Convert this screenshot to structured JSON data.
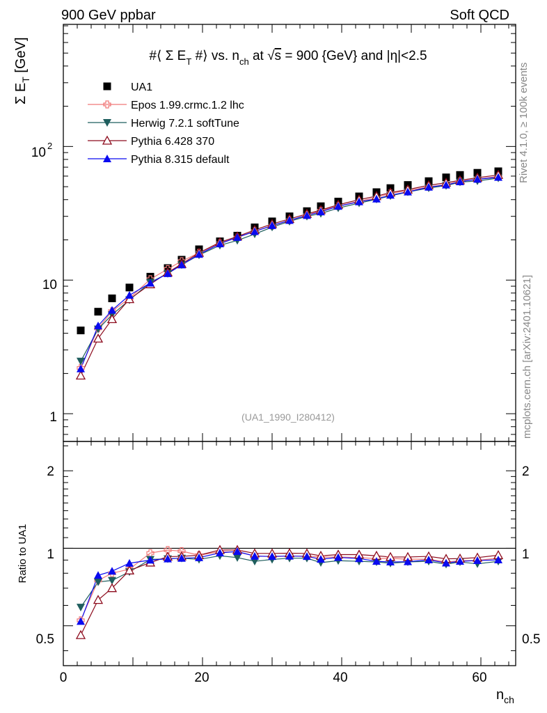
{
  "header": {
    "left_label": "900 GeV ppbar",
    "right_label": "Soft QCD"
  },
  "side": {
    "rivet_label": "Rivet 4.1.0, ≥ 100k events",
    "mcplots_label": "mcplots.cern.ch [arXiv:2401.10621]"
  },
  "chart_data": [
    {
      "type": "line",
      "title": "#⟨ Σ E_T #⟩ vs. n_ch at √s = 900 {GeV} and |η|<2.5",
      "title_parts": {
        "a": "#⟨ Σ E",
        "sub1": "T",
        "b": " #⟩ vs. n",
        "sub2": "ch",
        "c": " at √",
        "s": "s",
        "d": " = 900 {GeV} and |η|<2.5"
      },
      "ylabel_parts": {
        "main": "Σ E",
        "sub": "T",
        "unit": " [GeV]"
      },
      "yscale": "log",
      "ylim": [
        0.62,
        820
      ],
      "xlim": [
        0,
        65
      ],
      "ytick_labels": {
        "t1": "1",
        "t10": "10",
        "t100_base": "10",
        "t100_exp": "2"
      },
      "analysis_id": "(UA1_1990_I280412)",
      "x": [
        2.5,
        5,
        7,
        9.5,
        12.5,
        15,
        17,
        19.5,
        22.5,
        25,
        27.5,
        30,
        32.5,
        35,
        37,
        39.5,
        42.5,
        45,
        47,
        49.5,
        52.5,
        55,
        57,
        59.5,
        62.5
      ],
      "series": [
        {
          "name": "UA1",
          "color": "#000000",
          "marker": "square",
          "values": [
            4.2,
            5.8,
            7.3,
            8.8,
            10.6,
            12.3,
            14.2,
            17.0,
            19.5,
            21.5,
            24.8,
            27.5,
            30.0,
            32.8,
            35.7,
            38.7,
            42.3,
            45.5,
            48.8,
            51.5,
            55.0,
            58.7,
            61.2,
            63.5,
            65.2
          ]
        },
        {
          "name": "Epos 1.99.crmc.1.2 lhc",
          "color": "#f07878",
          "marker": "cross",
          "values": [
            2.2,
            4.35,
            5.85,
            7.3,
            10.15,
            12.1,
            13.85,
            16.0,
            18.9,
            20.8,
            23.2,
            25.5,
            28.0,
            30.6,
            33.0,
            35.8,
            38.9,
            41.5,
            44.6,
            46.7,
            49.9,
            51.9,
            54.8,
            57.0,
            59.7
          ]
        },
        {
          "name": "Herwig 7.2.1 softTune",
          "color": "#1f5e5e",
          "marker": "tri-down",
          "values": [
            2.47,
            4.3,
            5.5,
            7.1,
            9.6,
            11.2,
            13.0,
            15.4,
            18.2,
            19.8,
            22.1,
            24.9,
            27.5,
            30.0,
            31.5,
            34.6,
            37.7,
            40.3,
            42.7,
            45.6,
            48.9,
            50.9,
            54.1,
            55.2,
            58.0
          ]
        },
        {
          "name": "Pythia 6.428 370",
          "color": "#8c0a1c",
          "marker": "tri-up-open",
          "values": [
            1.93,
            3.65,
            5.1,
            7.2,
            9.3,
            11.4,
            13.2,
            16.0,
            19.2,
            21.2,
            23.7,
            26.3,
            28.7,
            31.3,
            33.4,
            36.6,
            40.0,
            42.5,
            45.2,
            47.6,
            51.2,
            53.5,
            55.8,
            58.4,
            61.2
          ]
        },
        {
          "name": "Pythia 8.315 default",
          "color": "#0a0af0",
          "marker": "tri-up",
          "values": [
            2.17,
            4.55,
            5.95,
            7.7,
            9.5,
            11.2,
            13.0,
            15.6,
            18.7,
            20.9,
            23.1,
            25.6,
            28.0,
            30.5,
            32.4,
            35.7,
            38.6,
            40.5,
            43.2,
            45.7,
            49.6,
            51.5,
            54.5,
            56.9,
            58.8
          ]
        }
      ],
      "legend_location": "top-left"
    },
    {
      "type": "line",
      "ylabel": "Ratio to UA1",
      "xlabel_parts": {
        "main": "n",
        "sub": "ch"
      },
      "yscale": "log",
      "ylim": [
        0.35,
        2.6
      ],
      "xlim": [
        0,
        65
      ],
      "reference_line": 1,
      "ytick_labels": [
        "0.5",
        "1",
        "2"
      ],
      "xtick_labels": [
        "0",
        "20",
        "40",
        "60"
      ],
      "x": [
        2.5,
        5,
        7,
        9.5,
        12.5,
        15,
        17,
        19.5,
        22.5,
        25,
        27.5,
        30,
        32.5,
        35,
        37,
        39.5,
        42.5,
        45,
        47,
        49.5,
        52.5,
        55,
        57,
        59.5,
        62.5
      ],
      "series": [
        {
          "name": "Epos 1.99.crmc.1.2 lhc",
          "values": [
            0.525,
            0.75,
            0.8,
            0.83,
            0.958,
            0.984,
            0.975,
            0.94,
            0.97,
            0.967,
            0.935,
            0.927,
            0.933,
            0.933,
            0.924,
            0.925,
            0.92,
            0.912,
            0.914,
            0.907,
            0.907,
            0.884,
            0.895,
            0.897,
            0.916
          ]
        },
        {
          "name": "Herwig 7.2.1 softTune",
          "values": [
            0.59,
            0.74,
            0.75,
            0.81,
            0.905,
            0.91,
            0.915,
            0.905,
            0.935,
            0.92,
            0.89,
            0.905,
            0.915,
            0.915,
            0.88,
            0.895,
            0.89,
            0.885,
            0.875,
            0.885,
            0.89,
            0.867,
            0.885,
            0.87,
            0.89
          ]
        },
        {
          "name": "Pythia 6.428 370",
          "values": [
            0.46,
            0.63,
            0.7,
            0.82,
            0.88,
            0.928,
            0.93,
            0.94,
            0.985,
            0.985,
            0.955,
            0.955,
            0.957,
            0.955,
            0.935,
            0.945,
            0.945,
            0.935,
            0.925,
            0.925,
            0.93,
            0.91,
            0.912,
            0.92,
            0.94
          ]
        },
        {
          "name": "Pythia 8.315 default",
          "values": [
            0.52,
            0.785,
            0.815,
            0.875,
            0.9,
            0.91,
            0.915,
            0.92,
            0.96,
            0.972,
            0.932,
            0.93,
            0.933,
            0.93,
            0.907,
            0.922,
            0.912,
            0.89,
            0.885,
            0.887,
            0.902,
            0.877,
            0.89,
            0.896,
            0.902
          ]
        }
      ]
    }
  ]
}
